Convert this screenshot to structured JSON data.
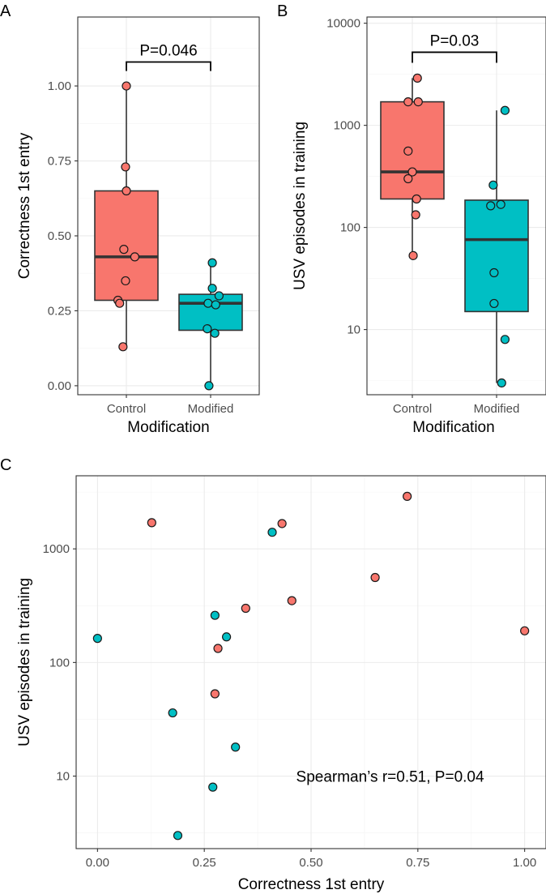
{
  "colors": {
    "control": "#F8766D",
    "modified": "#00BFC4"
  },
  "chart_data": [
    {
      "panel": "A",
      "type": "box",
      "xlabel": "Modification",
      "ylabel": "Correctness 1st entry",
      "categories": [
        "Control",
        "Modified"
      ],
      "ylim": [
        -0.03,
        1.23
      ],
      "yticks": [
        0,
        0.25,
        0.5,
        0.75,
        1.0
      ],
      "ytick_labels": [
        "0.00",
        "0.25",
        "0.50",
        "0.75",
        "1.00"
      ],
      "boxes": [
        {
          "group": "Control",
          "min": 0.13,
          "q1": 0.285,
          "median": 0.43,
          "q3": 0.65,
          "max": 1.0
        },
        {
          "group": "Modified",
          "min": 0.0,
          "q1": 0.185,
          "median": 0.275,
          "q3": 0.305,
          "max": 0.41
        }
      ],
      "points": [
        {
          "group": "Control",
          "jitter": 0.0,
          "y": 1.0
        },
        {
          "group": "Control",
          "jitter": -0.01,
          "y": 0.73
        },
        {
          "group": "Control",
          "jitter": 0.0,
          "y": 0.65
        },
        {
          "group": "Control",
          "jitter": -0.03,
          "y": 0.455
        },
        {
          "group": "Control",
          "jitter": 0.1,
          "y": 0.43
        },
        {
          "group": "Control",
          "jitter": -0.01,
          "y": 0.35
        },
        {
          "group": "Control",
          "jitter": -0.1,
          "y": 0.285
        },
        {
          "group": "Control",
          "jitter": -0.08,
          "y": 0.275
        },
        {
          "group": "Control",
          "jitter": -0.04,
          "y": 0.13
        },
        {
          "group": "Modified",
          "jitter": 0.02,
          "y": 0.41
        },
        {
          "group": "Modified",
          "jitter": 0.02,
          "y": 0.325
        },
        {
          "group": "Modified",
          "jitter": 0.1,
          "y": 0.3
        },
        {
          "group": "Modified",
          "jitter": -0.03,
          "y": 0.275
        },
        {
          "group": "Modified",
          "jitter": 0.06,
          "y": 0.27
        },
        {
          "group": "Modified",
          "jitter": -0.04,
          "y": 0.19
        },
        {
          "group": "Modified",
          "jitter": 0.05,
          "y": 0.175
        },
        {
          "group": "Modified",
          "jitter": -0.02,
          "y": 0.0
        }
      ],
      "comparison": {
        "label": "P=0.046",
        "y_bracket": 1.08,
        "tick_down": 0.03
      }
    },
    {
      "panel": "B",
      "type": "box",
      "yscale": "log10",
      "xlabel": "Modification",
      "ylabel": "USV episodes in training",
      "categories": [
        "Control",
        "Modified"
      ],
      "ylim": [
        2.3,
        11500
      ],
      "yticks": [
        10,
        100,
        1000,
        10000
      ],
      "ytick_labels": [
        "10",
        "100",
        "1000",
        "10000"
      ],
      "yminor": [
        3.16,
        31.6,
        316,
        3162
      ],
      "boxes": [
        {
          "group": "Control",
          "min": 53,
          "q1": 190,
          "median": 350,
          "q3": 1700,
          "max": 2900
        },
        {
          "group": "Modified",
          "min": 3,
          "q1": 15,
          "median": 76,
          "q3": 185,
          "max": 1400
        }
      ],
      "points": [
        {
          "group": "Control",
          "jitter": 0.06,
          "y": 2900
        },
        {
          "group": "Control",
          "jitter": -0.05,
          "y": 1700
        },
        {
          "group": "Control",
          "jitter": 0.07,
          "y": 1700
        },
        {
          "group": "Control",
          "jitter": -0.05,
          "y": 560
        },
        {
          "group": "Control",
          "jitter": 0.0,
          "y": 350
        },
        {
          "group": "Control",
          "jitter": -0.05,
          "y": 300
        },
        {
          "group": "Control",
          "jitter": 0.05,
          "y": 190
        },
        {
          "group": "Control",
          "jitter": 0.04,
          "y": 133
        },
        {
          "group": "Control",
          "jitter": 0.01,
          "y": 53
        },
        {
          "group": "Modified",
          "jitter": 0.1,
          "y": 1400
        },
        {
          "group": "Modified",
          "jitter": -0.04,
          "y": 260
        },
        {
          "group": "Modified",
          "jitter": 0.05,
          "y": 168
        },
        {
          "group": "Modified",
          "jitter": -0.07,
          "y": 163
        },
        {
          "group": "Modified",
          "jitter": -0.03,
          "y": 36
        },
        {
          "group": "Modified",
          "jitter": -0.03,
          "y": 18
        },
        {
          "group": "Modified",
          "jitter": 0.1,
          "y": 8
        },
        {
          "group": "Modified",
          "jitter": 0.06,
          "y": 3
        }
      ],
      "comparison": {
        "label": "P=0.03",
        "y_bracket": 5200,
        "tick_down_factor": 1.27
      }
    },
    {
      "panel": "C",
      "type": "scatter",
      "yscale": "log10",
      "xlabel": "Correctness 1st entry",
      "ylabel": "USV episodes in training",
      "xlim": [
        -0.05,
        1.05
      ],
      "xticks": [
        0,
        0.25,
        0.5,
        0.75,
        1.0
      ],
      "xtick_labels": [
        "0.00",
        "0.25",
        "0.50",
        "0.75",
        "1.00"
      ],
      "xminor": [
        0.125,
        0.375,
        0.625,
        0.875
      ],
      "ylim": [
        2.3,
        4400
      ],
      "yticks": [
        10,
        100,
        1000
      ],
      "ytick_labels": [
        "10",
        "100",
        "1000"
      ],
      "yminor": [
        3.16,
        31.6,
        316,
        3162
      ],
      "annotation": "Spearman’s r=0.51, P=0.04",
      "annotation_at": [
        0.685,
        10
      ],
      "points": [
        {
          "group": "Control",
          "x": 0.725,
          "y": 2900
        },
        {
          "group": "Control",
          "x": 0.127,
          "y": 1700
        },
        {
          "group": "Control",
          "x": 0.432,
          "y": 1670
        },
        {
          "group": "Control",
          "x": 0.65,
          "y": 560
        },
        {
          "group": "Control",
          "x": 0.455,
          "y": 350
        },
        {
          "group": "Control",
          "x": 0.347,
          "y": 300
        },
        {
          "group": "Control",
          "x": 1.0,
          "y": 190
        },
        {
          "group": "Control",
          "x": 0.282,
          "y": 133
        },
        {
          "group": "Control",
          "x": 0.275,
          "y": 53
        },
        {
          "group": "Modified",
          "x": 0.409,
          "y": 1400
        },
        {
          "group": "Modified",
          "x": 0.0,
          "y": 163
        },
        {
          "group": "Modified",
          "x": 0.275,
          "y": 260
        },
        {
          "group": "Modified",
          "x": 0.302,
          "y": 168
        },
        {
          "group": "Modified",
          "x": 0.176,
          "y": 36
        },
        {
          "group": "Modified",
          "x": 0.323,
          "y": 18
        },
        {
          "group": "Modified",
          "x": 0.27,
          "y": 8
        },
        {
          "group": "Modified",
          "x": 0.188,
          "y": 3
        }
      ]
    }
  ]
}
